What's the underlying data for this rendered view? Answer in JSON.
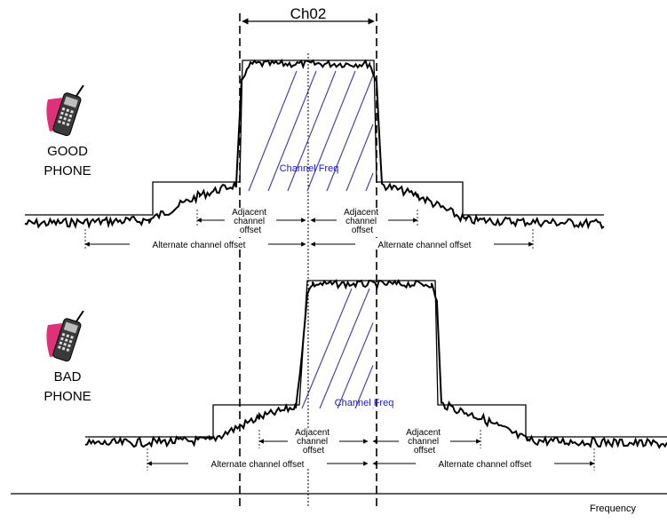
{
  "channel_label": "Ch02",
  "axis_label": "Frequency",
  "good_phone": {
    "label_line1": "GOOD",
    "label_line2": "PHONE",
    "icon": "mobile-phone-icon",
    "channel_freq_label": "Channel Freq",
    "adjacent_left": [
      "Adjacent",
      "channel",
      "offset"
    ],
    "adjacent_right": [
      "Adjacent",
      "channel",
      "offset"
    ],
    "alternate_left": "Alternate channel offset",
    "alternate_right": "Alternate channel offset"
  },
  "bad_phone": {
    "label_line1": "BAD",
    "label_line2": "PHONE",
    "icon": "mobile-phone-icon",
    "channel_freq_label": "Channel Freq",
    "adjacent_left": [
      "Adjacent",
      "channel",
      "offset"
    ],
    "adjacent_right": [
      "Adjacent",
      "channel",
      "offset"
    ],
    "alternate_left": "Alternate channel offset",
    "alternate_right": "Alternate channel offset"
  },
  "colors": {
    "ink": "#000000",
    "hatch": "#3a3aa0",
    "freq_text": "#1a1acc",
    "phone_accent": "#e0307a",
    "phone_body": "#3a3a3a"
  }
}
